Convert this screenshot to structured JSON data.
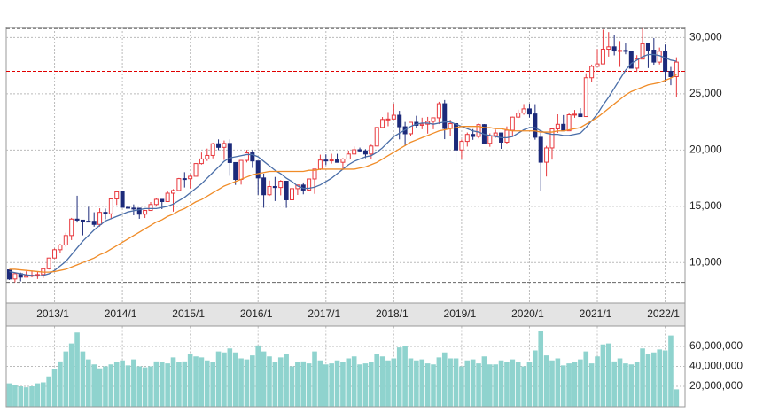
{
  "chart_data": [
    {
      "type": "candlestick",
      "categories": [
        null,
        null,
        null,
        null,
        null,
        null,
        null,
        null,
        "2013/1",
        null,
        null,
        null,
        null,
        null,
        null,
        null,
        null,
        null,
        null,
        null,
        "2014/1",
        null,
        null,
        null,
        null,
        null,
        null,
        null,
        null,
        null,
        null,
        null,
        "2015/1",
        null,
        null,
        null,
        null,
        null,
        null,
        null,
        null,
        null,
        null,
        null,
        "2016/1",
        null,
        null,
        null,
        null,
        null,
        null,
        null,
        null,
        null,
        null,
        null,
        "2017/1",
        null,
        null,
        null,
        null,
        null,
        null,
        null,
        null,
        null,
        null,
        null,
        "2018/1",
        null,
        null,
        null,
        null,
        null,
        null,
        null,
        null,
        null,
        null,
        null,
        "2019/1",
        null,
        null,
        null,
        null,
        null,
        null,
        null,
        null,
        null,
        null,
        null,
        "2020/1",
        null,
        null,
        null,
        null,
        null,
        null,
        null,
        null,
        null,
        null,
        null,
        "2021/1",
        null,
        null,
        null,
        null,
        null,
        null,
        null,
        null,
        null,
        null,
        null,
        "2022/1",
        null,
        null
      ],
      "open": [
        9350,
        8540,
        9010,
        8700,
        8840,
        8870,
        8930,
        9450,
        10400,
        11140,
        11560,
        12400,
        13860,
        13770,
        13680,
        13670,
        13390,
        14460,
        14330,
        15660,
        16290,
        14910,
        14840,
        14830,
        14300,
        14630,
        15160,
        15620,
        15420,
        16170,
        16410,
        17460,
        17450,
        17670,
        18800,
        19210,
        19520,
        20560,
        20240,
        20590,
        18890,
        17390,
        19080,
        19750,
        19030,
        17520,
        16030,
        16760,
        16670,
        17230,
        15580,
        16570,
        16890,
        16450,
        17430,
        18310,
        19110,
        19040,
        19120,
        18910,
        19200,
        19650,
        20030,
        19930,
        19650,
        20360,
        22010,
        22720,
        22760,
        23100,
        22070,
        21450,
        22470,
        22200,
        22300,
        22550,
        22870,
        24120,
        21920,
        22350,
        20010,
        20770,
        21390,
        21210,
        22260,
        20600,
        21280,
        21520,
        20700,
        21760,
        22930,
        23290,
        23660,
        23210,
        21140,
        18920,
        20190,
        21880,
        22290,
        21710,
        23140,
        23190,
        22980,
        26430,
        27440,
        27660,
        28970,
        29180,
        28810,
        28860,
        28790,
        27280,
        28090,
        29450,
        28890,
        27820,
        28790,
        27000,
        26530
      ],
      "high": [
        9380,
        9050,
        9100,
        9220,
        9290,
        9180,
        9470,
        10430,
        11250,
        11660,
        12650,
        13970,
        15940,
        13800,
        14950,
        14470,
        14820,
        14800,
        15730,
        16320,
        16330,
        14920,
        15170,
        14850,
        14680,
        15380,
        15760,
        15650,
        16380,
        16530,
        17520,
        18030,
        17850,
        18830,
        19780,
        20130,
        20650,
        20950,
        20850,
        20950,
        18900,
        19120,
        20010,
        20010,
        19040,
        17900,
        17290,
        17610,
        17330,
        17250,
        16940,
        16940,
        17120,
        17460,
        18320,
        19590,
        19620,
        19670,
        19670,
        19290,
        19960,
        20320,
        20220,
        20080,
        20480,
        22020,
        22940,
        23380,
        24130,
        23490,
        22500,
        22480,
        23050,
        22880,
        22950,
        22900,
        24290,
        24450,
        22700,
        22700,
        20940,
        21560,
        21860,
        22360,
        22310,
        21480,
        21820,
        21540,
        22100,
        22980,
        23590,
        24090,
        24120,
        24080,
        21720,
        20370,
        21910,
        23180,
        23110,
        23340,
        23560,
        23730,
        26830,
        27600,
        28980,
        30710,
        30490,
        30200,
        29690,
        29480,
        28850,
        28440,
        30800,
        29490,
        29960,
        29120,
        29390,
        27390,
        28250
      ],
      "low": [
        8460,
        8240,
        8330,
        8690,
        8680,
        8540,
        8620,
        9380,
        10390,
        10830,
        11420,
        12000,
        13560,
        12420,
        13610,
        13190,
        13190,
        13850,
        13850,
        15120,
        14890,
        13990,
        14200,
        13890,
        13960,
        14600,
        15060,
        14750,
        15400,
        14530,
        16360,
        16670,
        16590,
        17710,
        18710,
        19030,
        19260,
        19990,
        19120,
        17710,
        16900,
        16930,
        18900,
        18410,
        16020,
        14870,
        15920,
        15470,
        15980,
        14860,
        15110,
        16010,
        16070,
        16350,
        16110,
        18220,
        18650,
        18800,
        18900,
        18220,
        19190,
        19640,
        19850,
        19280,
        19240,
        20350,
        21970,
        22120,
        22750,
        20950,
        20350,
        21290,
        22000,
        21850,
        21460,
        21850,
        22310,
        20970,
        21240,
        18950,
        19240,
        20310,
        20910,
        21040,
        20560,
        20290,
        21090,
        20110,
        20580,
        21280,
        22850,
        23140,
        22890,
        20920,
        16360,
        17650,
        19150,
        21530,
        21710,
        21860,
        22870,
        22950,
        22950,
        26050,
        27400,
        27650,
        28310,
        28420,
        27390,
        28520,
        27270,
        26950,
        28080,
        27290,
        27590,
        27610,
        26040,
        25770,
        24680
      ],
      "close": [
        8540,
        9010,
        8700,
        8840,
        8870,
        8930,
        9450,
        10400,
        11140,
        11560,
        12400,
        13860,
        13770,
        13680,
        13670,
        13390,
        14460,
        14330,
        15660,
        16290,
        14910,
        14840,
        14830,
        14300,
        14630,
        15160,
        15620,
        15420,
        16170,
        16410,
        17460,
        17450,
        17670,
        18800,
        19210,
        19520,
        20560,
        20240,
        20590,
        18890,
        17390,
        19080,
        19750,
        19030,
        17520,
        16030,
        16760,
        16670,
        17230,
        15580,
        16570,
        16890,
        16450,
        17430,
        18310,
        19110,
        19040,
        19120,
        18910,
        19200,
        19650,
        20030,
        19930,
        19650,
        20360,
        22010,
        22720,
        22760,
        23100,
        22070,
        21450,
        22470,
        22200,
        22300,
        22550,
        22870,
        24120,
        21920,
        22350,
        20010,
        20770,
        21390,
        21210,
        22260,
        20600,
        21280,
        21520,
        20700,
        21760,
        22930,
        23290,
        23660,
        23210,
        21140,
        18920,
        20190,
        21880,
        22290,
        21710,
        23140,
        23190,
        22980,
        26430,
        27440,
        27660,
        28970,
        29180,
        28810,
        28860,
        28790,
        27280,
        28090,
        29450,
        28890,
        27820,
        28790,
        27000,
        26530,
        27820
      ],
      "up_color": "#e8383d",
      "down_color": "#1c2a7a",
      "series": [
        {
          "color": "#4a6ea8",
          "values": [
            9200,
            9100,
            9000,
            8900,
            8850,
            8800,
            8850,
            9000,
            9300,
            9700,
            10100,
            10700,
            11300,
            11900,
            12400,
            12900,
            13300,
            13700,
            13900,
            14100,
            14300,
            14500,
            14600,
            14700,
            14800,
            14800,
            14800,
            14900,
            15000,
            15200,
            15500,
            15800,
            16200,
            16600,
            17000,
            17500,
            18000,
            18500,
            19000,
            19300,
            19400,
            19500,
            19600,
            19600,
            19400,
            19000,
            18600,
            18200,
            17900,
            17500,
            17200,
            16800,
            16600,
            16600,
            16700,
            16900,
            17200,
            17500,
            17900,
            18300,
            18700,
            19000,
            19200,
            19400,
            19500,
            19800,
            20200,
            20700,
            21200,
            21500,
            21800,
            22100,
            22300,
            22400,
            22400,
            22300,
            22400,
            22500,
            22500,
            22300,
            22100,
            21900,
            21700,
            21600,
            21400,
            21300,
            21200,
            21100,
            21100,
            21200,
            21500,
            21800,
            22000,
            22000,
            21700,
            21500,
            21400,
            21400,
            21300,
            21300,
            21400,
            21500,
            22000,
            22600,
            23200,
            24000,
            24700,
            25500,
            26300,
            27100,
            27700,
            28000,
            28300,
            28500,
            28500,
            28400,
            28200,
            28000,
            27900
          ]
        },
        {
          "color": "#f08c28",
          "values": [
            9400,
            9400,
            9350,
            9300,
            9250,
            9200,
            9150,
            9150,
            9200,
            9300,
            9400,
            9600,
            9800,
            10000,
            10200,
            10400,
            10700,
            10900,
            11200,
            11500,
            11800,
            12100,
            12400,
            12700,
            13000,
            13300,
            13600,
            13800,
            14100,
            14300,
            14600,
            14800,
            15100,
            15400,
            15600,
            15900,
            16200,
            16500,
            16800,
            17000,
            17200,
            17400,
            17600,
            17800,
            17900,
            18000,
            18100,
            18100,
            18100,
            18100,
            18100,
            18100,
            18100,
            18200,
            18200,
            18300,
            18300,
            18300,
            18300,
            18300,
            18300,
            18300,
            18400,
            18500,
            18700,
            18900,
            19200,
            19500,
            19800,
            20100,
            20400,
            20700,
            20900,
            21100,
            21300,
            21500,
            21700,
            21800,
            21900,
            22000,
            22100,
            22100,
            22100,
            22100,
            22000,
            22000,
            21900,
            21900,
            21800,
            21700,
            21700,
            21700,
            21700,
            21700,
            21600,
            21600,
            21600,
            21700,
            21700,
            21800,
            21900,
            22000,
            22300,
            22600,
            22900,
            23300,
            23700,
            24100,
            24500,
            24900,
            25200,
            25400,
            25600,
            25800,
            25900,
            26000,
            26200,
            26400,
            26700
          ]
        }
      ],
      "reference_lines": [
        {
          "value": 30800,
          "color": "#666666"
        },
        {
          "value": 8240,
          "color": "#666666"
        },
        {
          "value": 27000,
          "color": "#e00000"
        }
      ],
      "ylim": [
        6400,
        30900
      ],
      "yticks": [
        {
          "value": 10000,
          "label": "10,000"
        },
        {
          "value": 15000,
          "label": "15,000"
        },
        {
          "value": 20000,
          "label": "20,000"
        },
        {
          "value": 25000,
          "label": "25,000"
        },
        {
          "value": 30000,
          "label": "30,000"
        }
      ],
      "grid": true
    },
    {
      "type": "bar",
      "color": "#8fd3ce",
      "values": [
        23000000,
        21000000,
        20000000,
        19000000,
        20000000,
        23000000,
        24000000,
        30000000,
        37000000,
        45000000,
        55000000,
        63000000,
        74000000,
        55000000,
        47000000,
        42000000,
        38000000,
        40000000,
        42000000,
        44000000,
        46000000,
        41000000,
        47000000,
        40000000,
        39000000,
        40000000,
        45000000,
        44000000,
        43000000,
        49000000,
        44000000,
        45000000,
        52000000,
        50000000,
        49000000,
        46000000,
        44000000,
        55000000,
        54000000,
        58000000,
        54000000,
        48000000,
        47000000,
        51000000,
        61000000,
        55000000,
        50000000,
        44000000,
        49000000,
        52000000,
        40000000,
        44000000,
        45000000,
        43000000,
        55000000,
        46000000,
        42000000,
        43000000,
        46000000,
        44000000,
        48000000,
        50000000,
        42000000,
        43000000,
        44000000,
        52000000,
        50000000,
        46000000,
        48000000,
        59000000,
        60000000,
        48000000,
        46000000,
        47000000,
        43000000,
        42000000,
        49000000,
        54000000,
        48000000,
        48000000,
        40000000,
        46000000,
        47000000,
        43000000,
        50000000,
        42000000,
        42000000,
        46000000,
        44000000,
        47000000,
        44000000,
        40000000,
        44000000,
        56000000,
        76000000,
        51000000,
        46000000,
        48000000,
        41000000,
        43000000,
        44000000,
        47000000,
        55000000,
        43000000,
        50000000,
        62000000,
        63000000,
        45000000,
        48000000,
        43000000,
        42000000,
        44000000,
        58000000,
        52000000,
        54000000,
        57000000,
        56000000,
        71000000,
        17000000
      ],
      "ylim": [
        0,
        80000000
      ],
      "yticks": [
        {
          "value": 20000000,
          "label": "20,000,000"
        },
        {
          "value": 40000000,
          "label": "40,000,000"
        },
        {
          "value": 60000000,
          "label": "60,000,000"
        }
      ],
      "grid": true
    }
  ]
}
